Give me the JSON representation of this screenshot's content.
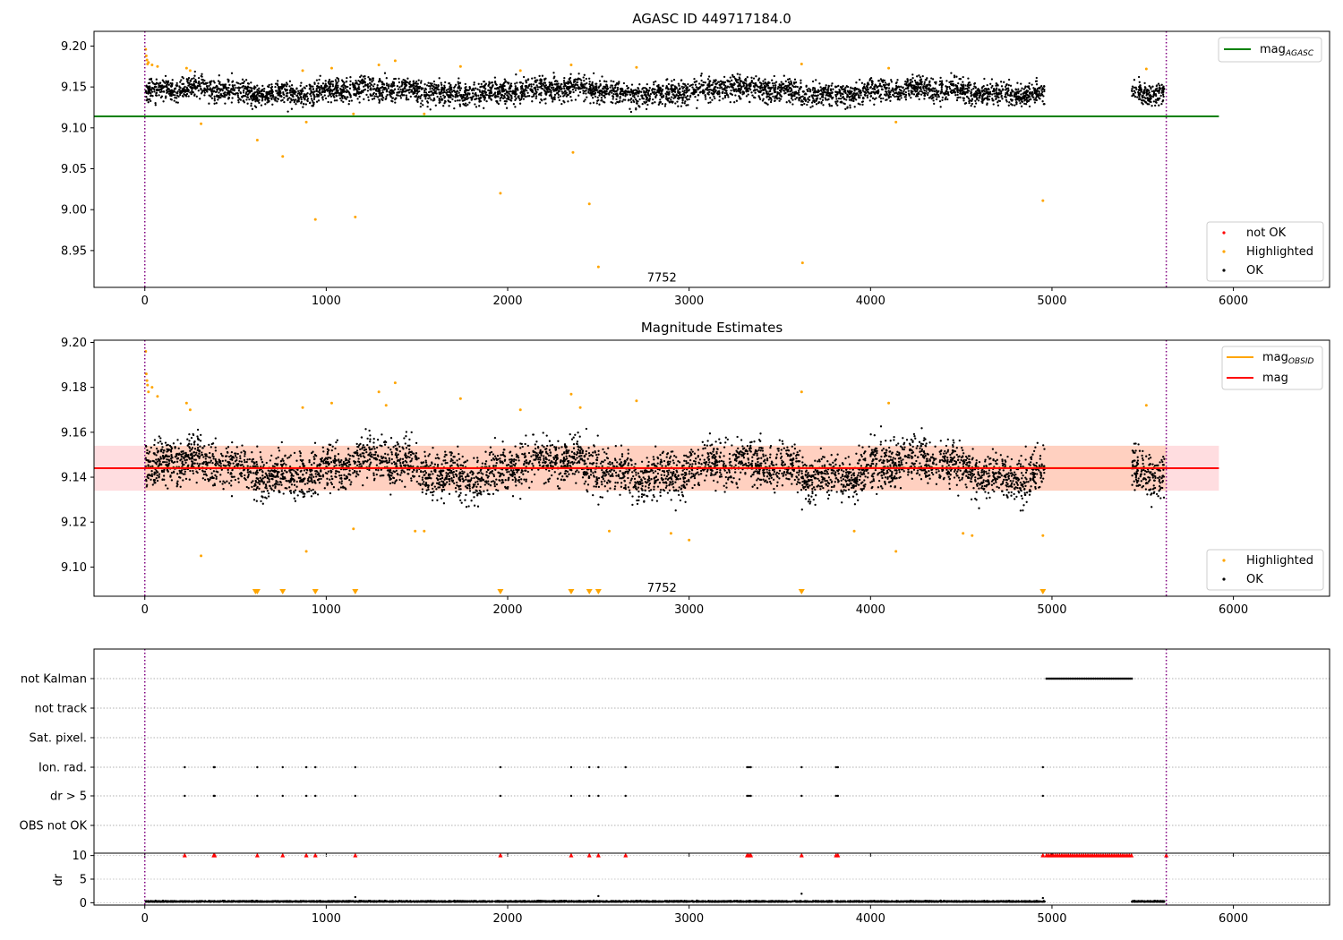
{
  "chart_data": [
    {
      "type": "scatter",
      "title": "AGASC ID 449717184.0",
      "xlim": [
        -280,
        6530
      ],
      "ylim": [
        8.905,
        9.218
      ],
      "xticks": [
        "0",
        "1000",
        "2000",
        "3000",
        "4000",
        "5000",
        "6000"
      ],
      "yticks": [
        "8.95",
        "9.00",
        "9.05",
        "9.10",
        "9.15",
        "9.20"
      ],
      "annotation": "7752",
      "annotation_pos": {
        "x": 2850,
        "y": 8.912
      },
      "vlines": [
        0,
        5630
      ],
      "lines": [
        {
          "name": "mag",
          "sub": "AGASC",
          "color": "#008000",
          "x": [
            -280,
            5920
          ],
          "y": [
            9.114,
            9.114
          ]
        }
      ],
      "series": [
        {
          "name": "not OK",
          "color": "#ff0000",
          "x": [],
          "y": []
        },
        {
          "name": "Highlighted",
          "color": "#ffa500",
          "x": [
            5,
            8,
            12,
            15,
            20,
            40,
            70,
            230,
            250,
            310,
            620,
            760,
            870,
            890,
            940,
            1030,
            1150,
            1160,
            1290,
            1380,
            1540,
            1740,
            1960,
            2070,
            2350,
            2360,
            2450,
            2500,
            2710,
            3620,
            3625,
            4100,
            4140,
            4950,
            5520
          ],
          "y": [
            9.196,
            9.188,
            9.183,
            9.178,
            9.18,
            9.177,
            9.175,
            9.173,
            9.17,
            9.105,
            9.085,
            9.065,
            9.17,
            9.107,
            8.988,
            9.173,
            9.117,
            8.991,
            9.177,
            9.182,
            9.117,
            9.175,
            9.02,
            9.17,
            9.177,
            9.07,
            9.007,
            8.93,
            9.174,
            9.178,
            8.935,
            9.173,
            9.107,
            9.011,
            9.172
          ]
        },
        {
          "name": "OK",
          "color": "#000000",
          "x": [],
          "y": []
        }
      ],
      "bands": [
        {
          "x0": 5,
          "x1": 4960,
          "center": 9.145,
          "spread": 0.012
        },
        {
          "x0": 5440,
          "x1": 5620,
          "center": 9.143,
          "spread": 0.012
        }
      ]
    },
    {
      "type": "scatter",
      "title": "Magnitude Estimates",
      "xlim": [
        -280,
        6530
      ],
      "ylim": [
        9.087,
        9.201
      ],
      "xticks": [
        "0",
        "1000",
        "2000",
        "3000",
        "4000",
        "5000",
        "6000"
      ],
      "yticks": [
        "9.10",
        "9.12",
        "9.14",
        "9.16",
        "9.18",
        "9.20"
      ],
      "annotation": "7752",
      "annotation_pos": {
        "x": 2850,
        "y": 9.089
      },
      "vlines": [
        0,
        5630
      ],
      "lines": [
        {
          "name": "mag",
          "sub": "OBSID",
          "color": "#ffa500",
          "x": [
            0,
            5630
          ],
          "y": [
            9.1441,
            9.1441
          ]
        },
        {
          "name": "mag",
          "sub": "",
          "color": "#ff0000",
          "x": [
            -280,
            5920
          ],
          "y": [
            9.144,
            9.144
          ]
        }
      ],
      "shade": [
        {
          "x0": -280,
          "x1": 5920,
          "y0": 9.134,
          "y1": 9.154,
          "color": "#ffb3ba"
        },
        {
          "x0": 0,
          "x1": 5630,
          "y0": 9.134,
          "y1": 9.154,
          "color": "#ffc09a"
        }
      ],
      "series": [
        {
          "name": "Highlighted",
          "color": "#ffa500",
          "x": [
            5,
            8,
            12,
            15,
            20,
            40,
            70,
            230,
            250,
            310,
            870,
            890,
            1030,
            1150,
            1290,
            1330,
            1380,
            1490,
            1540,
            1740,
            2070,
            2350,
            2400,
            2560,
            2710,
            2900,
            3000,
            3620,
            3910,
            4100,
            4140,
            4510,
            4560,
            4950,
            5520
          ],
          "y": [
            9.196,
            9.186,
            9.183,
            9.181,
            9.178,
            9.18,
            9.176,
            9.173,
            9.17,
            9.105,
            9.171,
            9.107,
            9.173,
            9.117,
            9.178,
            9.172,
            9.182,
            9.116,
            9.116,
            9.175,
            9.17,
            9.177,
            9.171,
            9.116,
            9.174,
            9.115,
            9.112,
            9.178,
            9.116,
            9.173,
            9.107,
            9.115,
            9.114,
            9.114,
            9.172
          ]
        },
        {
          "name": "OK",
          "color": "#000000",
          "x": [],
          "y": []
        }
      ],
      "lower_markers": [
        610,
        620,
        760,
        940,
        1160,
        1960,
        2350,
        2450,
        2500,
        3620,
        4950
      ],
      "bands": [
        {
          "x0": 5,
          "x1": 4960,
          "center": 9.144,
          "spread": 0.0085
        },
        {
          "x0": 5440,
          "x1": 5620,
          "center": 9.142,
          "spread": 0.0085
        }
      ]
    },
    {
      "type": "scatter",
      "title": "",
      "xlim": [
        -280,
        6530
      ],
      "xticks": [
        "0",
        "1000",
        "2000",
        "3000",
        "4000",
        "5000",
        "6000"
      ],
      "categories": [
        "not Kalman",
        "not track",
        "Sat. pixel.",
        "Ion. rad.",
        "dr > 5",
        "OBS not OK"
      ],
      "vlines": [
        0,
        5630
      ],
      "flags": {
        "not Kalman": {
          "x0": 4970,
          "x1": 5440
        },
        "Ion. rad.": [
          220,
          380,
          385,
          620,
          760,
          890,
          940,
          1160,
          1960,
          2350,
          2450,
          2500,
          2650,
          3320,
          3330,
          3340,
          3620,
          3810,
          3820,
          4950
        ],
        "dr > 5": [
          220,
          380,
          385,
          620,
          760,
          890,
          940,
          1160,
          1960,
          2350,
          2450,
          2500,
          2650,
          3320,
          3330,
          3340,
          3620,
          3810,
          3820,
          4950
        ]
      }
    },
    {
      "type": "scatter",
      "title": "",
      "ylabel": "dr",
      "xlim": [
        -280,
        6530
      ],
      "ylim": [
        -0.5,
        10.5
      ],
      "xticks": [
        "0",
        "1000",
        "2000",
        "3000",
        "4000",
        "5000",
        "6000"
      ],
      "yticks": [
        "0",
        "5",
        "10"
      ],
      "vlines": [
        0,
        5630
      ],
      "clipped_markers": {
        "color": "#ff0000",
        "x": [
          220,
          380,
          385,
          620,
          760,
          890,
          940,
          1160,
          1960,
          2350,
          2450,
          2500,
          2650,
          3320,
          3330,
          3340,
          3620,
          3810,
          3820,
          4950,
          5630
        ],
        "x_range": [
          4970,
          5440
        ]
      },
      "spikes": [
        {
          "x": 1160,
          "y": 1.2
        },
        {
          "x": 2500,
          "y": 1.4
        },
        {
          "x": 3620,
          "y": 1.9
        },
        {
          "x": 4950,
          "y": 1.0
        }
      ]
    }
  ]
}
